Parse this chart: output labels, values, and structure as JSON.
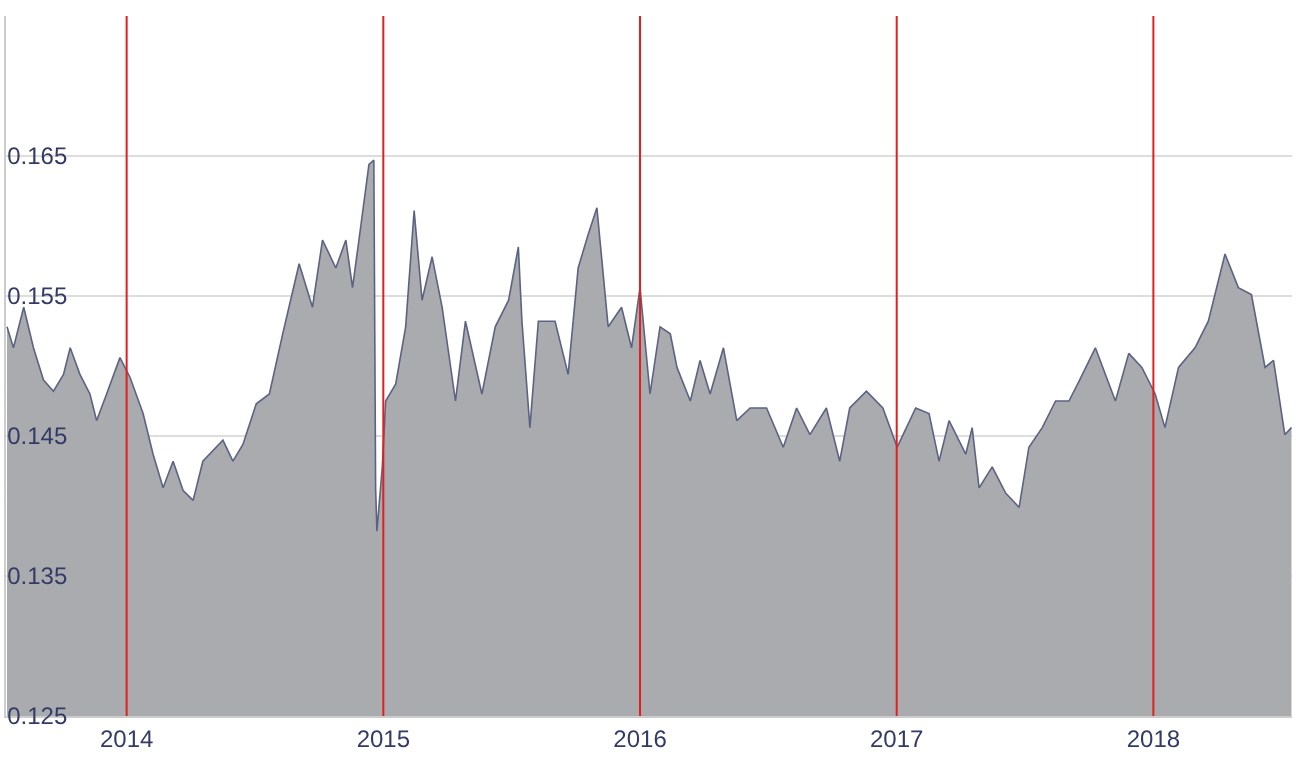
{
  "chart_data": {
    "type": "area",
    "x": [
      2013.534,
      2013.559,
      2013.599,
      2013.637,
      2013.676,
      2013.715,
      2013.754,
      2013.78,
      2013.818,
      2013.857,
      2013.883,
      2013.922,
      2013.974,
      2014.013,
      2014.064,
      2014.103,
      2014.142,
      2014.181,
      2014.22,
      2014.259,
      2014.297,
      2014.375,
      2014.414,
      2014.453,
      2014.505,
      2014.556,
      2014.608,
      2014.672,
      2014.724,
      2014.763,
      2014.815,
      2014.854,
      2014.88,
      2014.905,
      2014.944,
      2014.963,
      2014.97,
      2014.975,
      2014.996,
      2015.009,
      2015.048,
      2015.087,
      2015.12,
      2015.151,
      2015.19,
      2015.229,
      2015.281,
      2015.32,
      2015.384,
      2015.436,
      2015.488,
      2015.526,
      2015.54,
      2015.571,
      2015.604,
      2015.669,
      2015.72,
      2015.759,
      2015.798,
      2015.832,
      2015.876,
      2015.928,
      2015.967,
      2016.0,
      2016.039,
      2016.078,
      2016.118,
      2016.144,
      2016.196,
      2016.234,
      2016.273,
      2016.325,
      2016.377,
      2016.429,
      2016.493,
      2016.558,
      2016.61,
      2016.662,
      2016.726,
      2016.778,
      2016.817,
      2016.882,
      2016.946,
      2017.002,
      2017.074,
      2017.126,
      2017.165,
      2017.204,
      2017.269,
      2017.294,
      2017.321,
      2017.372,
      2017.425,
      2017.477,
      2017.515,
      2017.567,
      2017.619,
      2017.671,
      2017.71,
      2017.774,
      2017.852,
      2017.904,
      2017.955,
      2018.007,
      2018.045,
      2018.098,
      2018.162,
      2018.214,
      2018.279,
      2018.331,
      2018.382,
      2018.435,
      2018.468,
      2018.512,
      2018.538
    ],
    "series": [
      {
        "color": "#a9abae",
        "values": [
          0.1528,
          0.1513,
          0.1542,
          0.1513,
          0.149,
          0.1482,
          0.1494,
          0.1513,
          0.1494,
          0.148,
          0.1461,
          0.148,
          0.1506,
          0.1492,
          0.1466,
          0.1437,
          0.1413,
          0.1432,
          0.1411,
          0.1404,
          0.1432,
          0.1447,
          0.1432,
          0.1444,
          0.1473,
          0.148,
          0.1523,
          0.1573,
          0.1542,
          0.159,
          0.157,
          0.159,
          0.1556,
          0.159,
          0.1644,
          0.1647,
          0.1413,
          0.1382,
          0.1428,
          0.1475,
          0.1487,
          0.1528,
          0.1611,
          0.1547,
          0.1578,
          0.1542,
          0.1475,
          0.1532,
          0.148,
          0.1528,
          0.1547,
          0.1585,
          0.1532,
          0.1456,
          0.1532,
          0.1532,
          0.1494,
          0.157,
          0.1594,
          0.1613,
          0.1528,
          0.1542,
          0.1513,
          0.1556,
          0.148,
          0.1528,
          0.1523,
          0.1499,
          0.1475,
          0.1504,
          0.148,
          0.1513,
          0.1461,
          0.147,
          0.147,
          0.1442,
          0.147,
          0.1451,
          0.147,
          0.1432,
          0.147,
          0.1482,
          0.147,
          0.1442,
          0.147,
          0.1466,
          0.1432,
          0.1461,
          0.1437,
          0.1456,
          0.1413,
          0.1428,
          0.1409,
          0.1399,
          0.1442,
          0.1456,
          0.1475,
          0.1475,
          0.1489,
          0.1513,
          0.1475,
          0.1509,
          0.1499,
          0.148,
          0.1456,
          0.1499,
          0.1513,
          0.1532,
          0.158,
          0.1556,
          0.1551,
          0.1499,
          0.1504,
          0.1451,
          0.1456
        ]
      }
    ],
    "xlim": [
      2013.53,
      2018.54
    ],
    "xticks": [
      2014,
      2015,
      2016,
      2017,
      2018
    ],
    "ylim": [
      0.125,
      0.175
    ],
    "yticks": [
      0.125,
      0.135,
      0.145,
      0.155,
      0.165
    ],
    "grid": "y",
    "legend": false,
    "ref_lines": [
      {
        "axis": "x",
        "value": 2014,
        "color": "#e0201e"
      },
      {
        "axis": "x",
        "value": 2015,
        "color": "#e0201e"
      },
      {
        "axis": "x",
        "value": 2016,
        "color": "#e0201e"
      },
      {
        "axis": "x",
        "value": 2017,
        "color": "#e0201e"
      },
      {
        "axis": "x",
        "value": 2018,
        "color": "#e0201e"
      }
    ]
  }
}
